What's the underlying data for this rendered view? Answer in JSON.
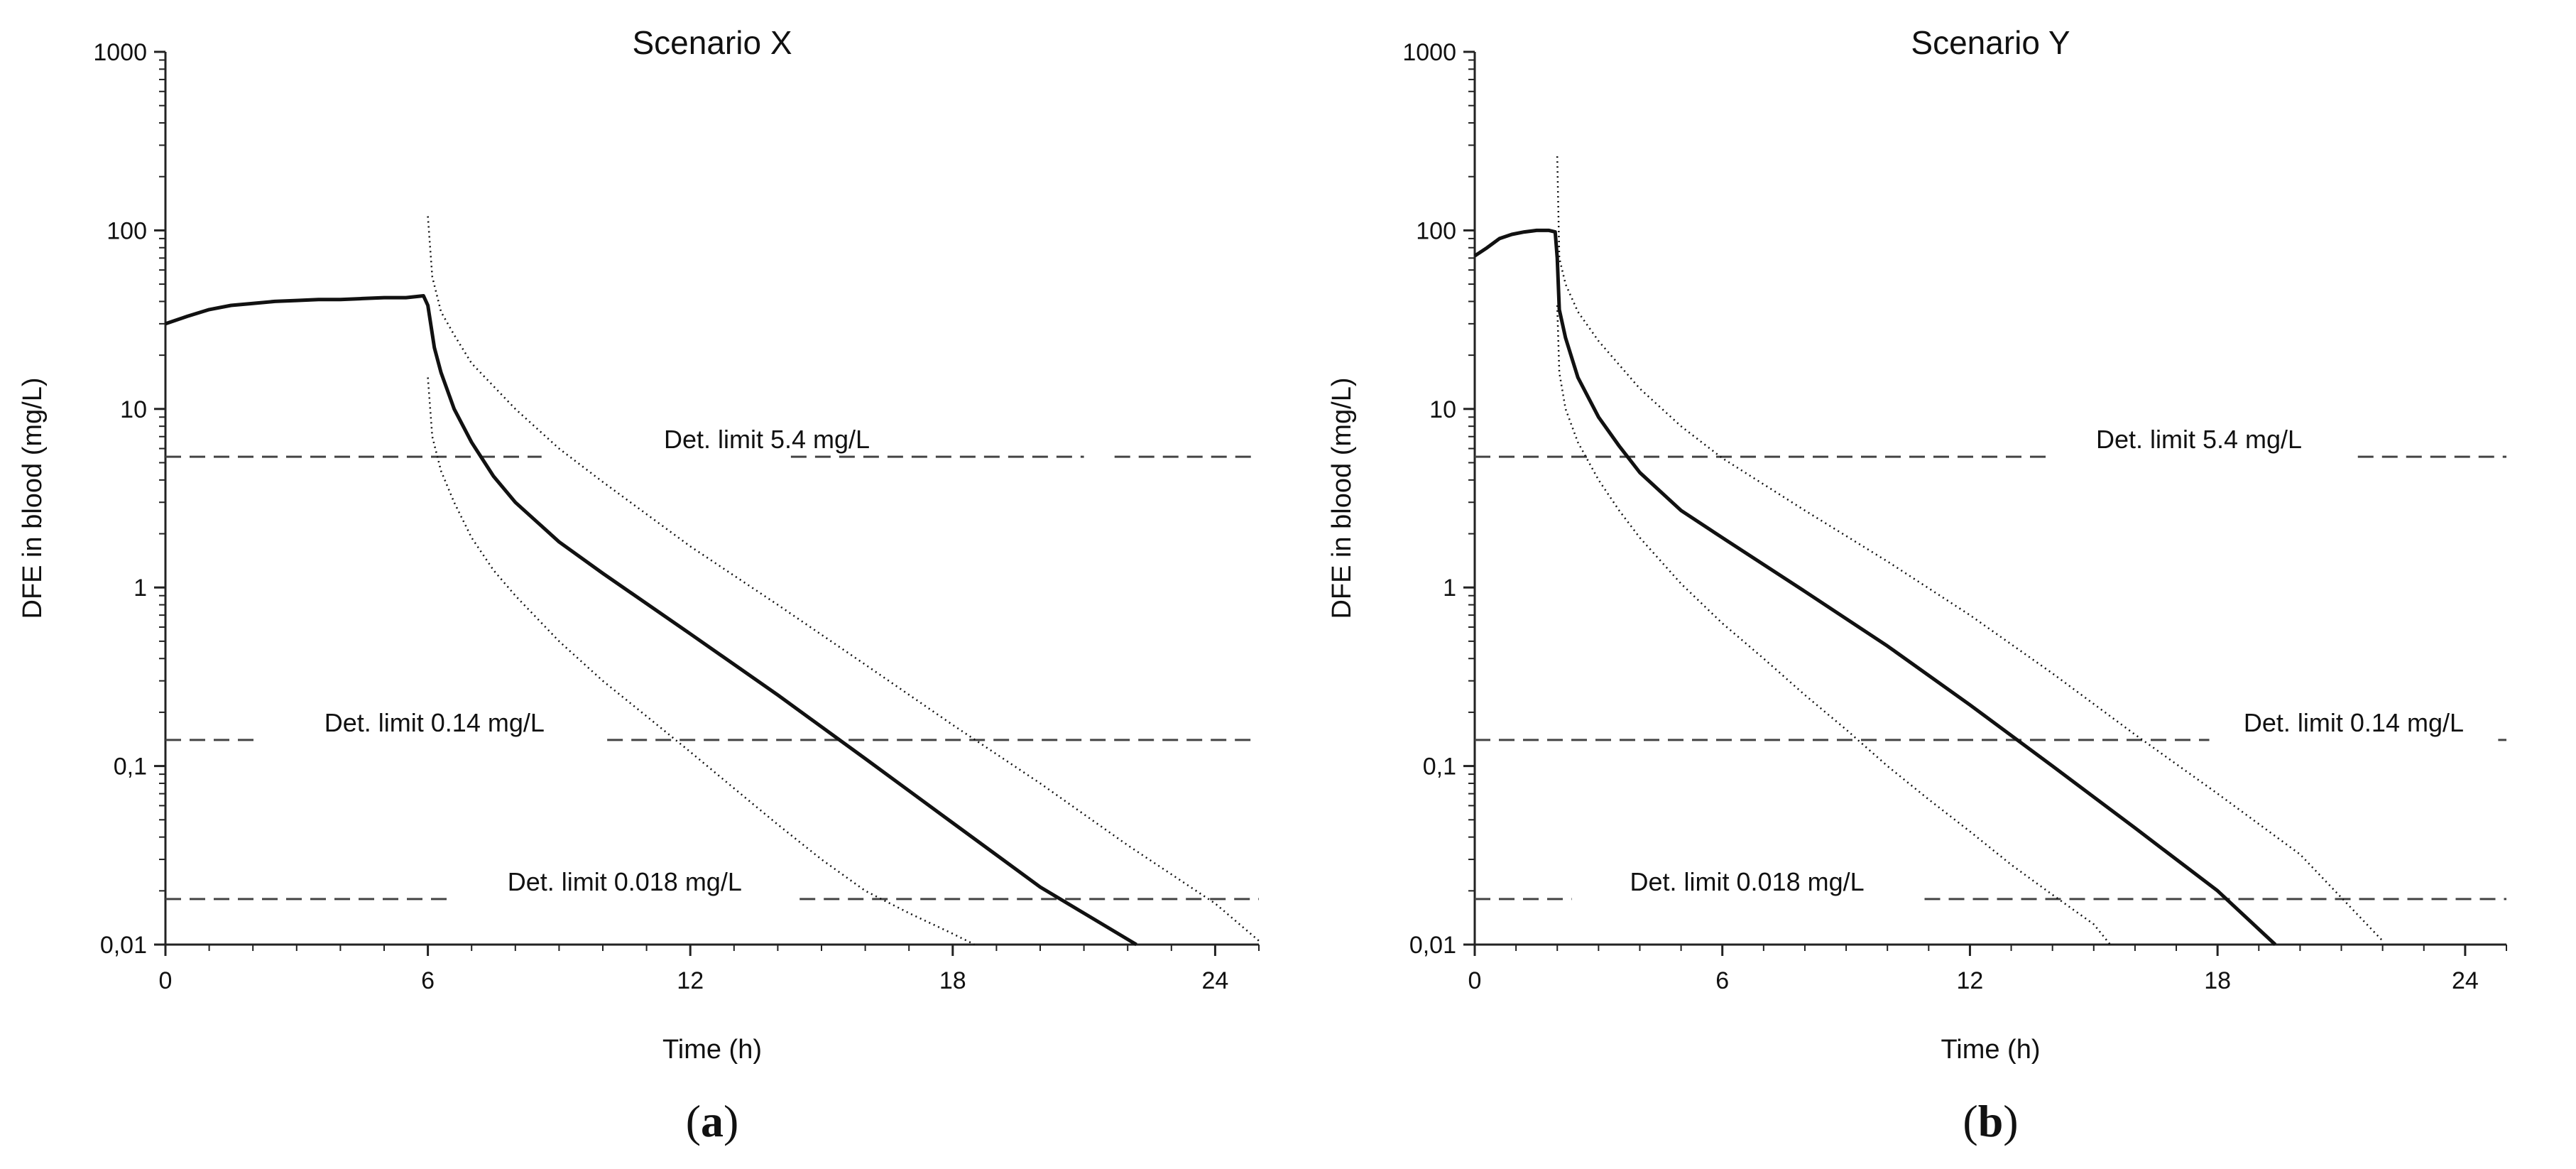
{
  "chart_data": [
    {
      "type": "line",
      "panel_label": "(a)",
      "panel_letter": "a",
      "title": "Scenario X",
      "xlabel": "Time (h)",
      "ylabel": "DFE in blood (mg/L)",
      "xlim": [
        0,
        25
      ],
      "ylim": [
        0.01,
        1000
      ],
      "yscale": "log",
      "xticks": [
        0,
        6,
        12,
        18,
        24
      ],
      "xtick_labels": [
        "0",
        "6",
        "12",
        "18",
        "24"
      ],
      "yticks": [
        0.01,
        0.1,
        1,
        10,
        100,
        1000
      ],
      "ytick_labels": [
        "0,01",
        "0,1",
        "1",
        "10",
        "100",
        "1000"
      ],
      "series": [
        {
          "name": "median",
          "style": "solid",
          "x": [
            0,
            0.5,
            1,
            1.5,
            2,
            2.5,
            3,
            3.5,
            4,
            4.5,
            5,
            5.5,
            5.9,
            6.0,
            6.15,
            6.3,
            6.6,
            7,
            7.5,
            8,
            9,
            10,
            12,
            14,
            16,
            18,
            20,
            22.2
          ],
          "y": [
            30,
            33,
            36,
            38,
            39,
            40,
            40.5,
            41,
            41,
            41.5,
            42,
            42,
            43,
            38,
            22,
            16,
            10,
            6.5,
            4.2,
            3.0,
            1.8,
            1.2,
            0.55,
            0.25,
            0.11,
            0.048,
            0.021,
            0.01
          ]
        },
        {
          "name": "upper bound",
          "style": "dotted",
          "x": [
            6.0,
            6.1,
            6.3,
            6.6,
            7,
            8,
            9,
            10,
            12,
            14,
            16,
            18,
            20,
            22,
            24,
            25
          ],
          "y": [
            120,
            55,
            35,
            26,
            18,
            10,
            6.0,
            3.9,
            1.7,
            0.8,
            0.37,
            0.17,
            0.08,
            0.036,
            0.017,
            0.0105
          ]
        },
        {
          "name": "lower bound",
          "style": "dotted",
          "x": [
            6.0,
            6.1,
            6.3,
            6.6,
            7,
            7.5,
            8,
            9,
            10,
            11,
            12,
            13,
            14,
            15,
            16,
            17,
            18,
            18.5
          ],
          "y": [
            15,
            7,
            4.5,
            3.0,
            1.9,
            1.25,
            0.9,
            0.5,
            0.3,
            0.19,
            0.12,
            0.075,
            0.047,
            0.03,
            0.02,
            0.015,
            0.0115,
            0.01
          ]
        }
      ],
      "limits": [
        {
          "label": "Det. limit 5.4 mg/L",
          "value": 5.4,
          "gaps": [
            [
              8.6,
              14.3
            ],
            [
              21.0,
              21.7
            ]
          ],
          "text_x": 13.75
        },
        {
          "label": "Det. limit 0.14 mg/L",
          "value": 0.14,
          "gaps": [
            [
              2.2,
              10.1
            ]
          ],
          "text_x": 6.15
        },
        {
          "label": "Det. limit 0.018 mg/L",
          "value": 0.018,
          "gaps": [
            [
              6.5,
              14.5
            ]
          ],
          "text_x": 10.5
        }
      ]
    },
    {
      "type": "line",
      "panel_label": "(b)",
      "panel_letter": "b",
      "title": "Scenario Y",
      "xlabel": "Time (h)",
      "ylabel": "DFE in blood (mg/L)",
      "xlim": [
        0,
        25
      ],
      "ylim": [
        0.01,
        1000
      ],
      "yscale": "log",
      "xticks": [
        0,
        6,
        12,
        18,
        24
      ],
      "xtick_labels": [
        "0",
        "6",
        "12",
        "18",
        "24"
      ],
      "yticks": [
        0.01,
        0.1,
        1,
        10,
        100,
        1000
      ],
      "ytick_labels": [
        "0,01",
        "0,1",
        "1",
        "10",
        "100",
        "1000"
      ],
      "series": [
        {
          "name": "median",
          "style": "solid",
          "x": [
            0,
            0.3,
            0.6,
            0.9,
            1.2,
            1.5,
            1.8,
            1.95,
            2.0,
            2.05,
            2.2,
            2.5,
            3,
            3.5,
            4,
            5,
            6,
            8,
            10,
            12,
            14,
            16,
            18,
            19.4
          ],
          "y": [
            72,
            80,
            90,
            95,
            98,
            100,
            100,
            98,
            70,
            36,
            25,
            15,
            9,
            6.2,
            4.4,
            2.7,
            1.9,
            0.95,
            0.47,
            0.22,
            0.1,
            0.045,
            0.02,
            0.01
          ]
        },
        {
          "name": "upper bound",
          "style": "dotted",
          "x": [
            2.0,
            2.05,
            2.2,
            2.5,
            3,
            4,
            5,
            6,
            8,
            10,
            12,
            14,
            16,
            18,
            20,
            22
          ],
          "y": [
            260,
            70,
            50,
            35,
            24,
            13,
            8,
            5.3,
            2.7,
            1.4,
            0.7,
            0.33,
            0.15,
            0.07,
            0.032,
            0.0105
          ]
        },
        {
          "name": "lower bound",
          "style": "dotted",
          "x": [
            2.0,
            2.05,
            2.2,
            2.5,
            3,
            3.5,
            4,
            5,
            6,
            7,
            8,
            9,
            10,
            11,
            12,
            13,
            14,
            15,
            15.4
          ],
          "y": [
            38,
            16,
            10,
            6.5,
            4.0,
            2.7,
            1.9,
            1.05,
            0.63,
            0.4,
            0.25,
            0.16,
            0.1,
            0.065,
            0.043,
            0.028,
            0.019,
            0.013,
            0.01
          ]
        }
      ],
      "limits": [
        {
          "label": "Det. limit 5.4 mg/L",
          "value": 5.4,
          "gaps": [
            [
              13.85,
              21.4
            ]
          ],
          "text_x": 17.55
        },
        {
          "label": "Det. limit 0.14 mg/L",
          "value": 0.14,
          "gaps": [
            [
              17.8,
              24.8
            ]
          ],
          "text_x": 21.3
        },
        {
          "label": "Det. limit 0.018 mg/L",
          "value": 0.018,
          "gaps": [
            [
              2.35,
              10.9
            ]
          ],
          "text_x": 6.6
        }
      ]
    }
  ]
}
